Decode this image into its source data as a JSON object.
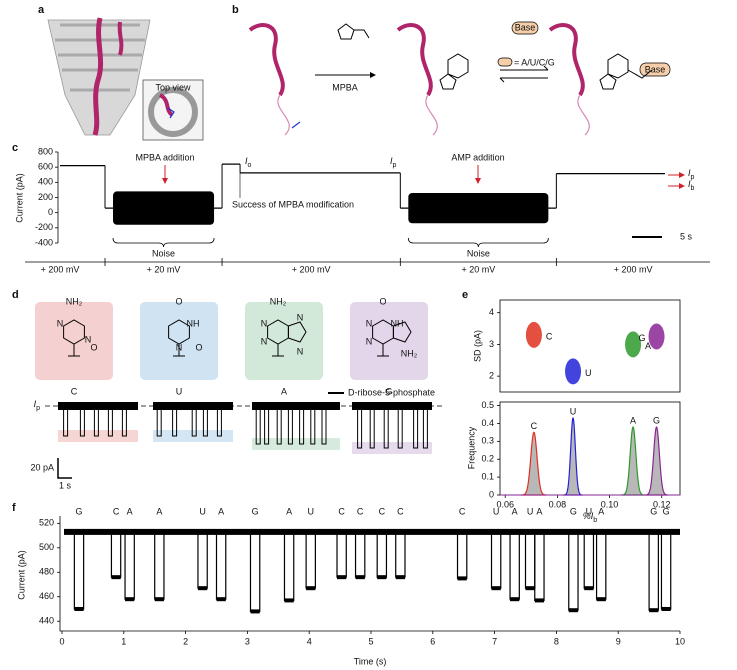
{
  "panel_a": {
    "label": "a",
    "inset": "Top view"
  },
  "panel_b": {
    "label": "b",
    "reagent": "MPBA",
    "base": "Base",
    "base2": "Base",
    "legend": "= A/U/C/G"
  },
  "panel_c": {
    "label": "c",
    "ylabel": "Current (pA)",
    "ylim": [
      -400,
      800
    ],
    "yticks": [
      -400,
      -200,
      0,
      200,
      400,
      600,
      800
    ],
    "segments": [
      {
        "start": 0,
        "end": 7.5,
        "level": 620
      },
      {
        "start": 7.5,
        "end": 27,
        "level": 60,
        "noise": 220
      },
      {
        "start": 27,
        "end": 30,
        "level": 640
      },
      {
        "start": 30,
        "end": 56.7,
        "level": 525
      },
      {
        "start": 56.7,
        "end": 82.7,
        "level": 60,
        "noise": 200
      },
      {
        "start": 82.7,
        "end": 100.8,
        "level": 515
      }
    ],
    "xlim": [
      0,
      100.8
    ],
    "annotations": [
      "MPBA addition",
      "Success of MPBA modification",
      "AMP addition"
    ],
    "noise_label": "Noise",
    "scale_bar": "5 s",
    "I": "I",
    "sub_o": "o",
    "sub_p": "p",
    "sub_b": "b",
    "voltages": [
      "+ 200 mV",
      "+ 20 mV",
      "+ 200 mV",
      "+ 20 mV",
      "+ 200 mV"
    ]
  },
  "panel_d": {
    "label": "d",
    "legend": "D-ribose-5-phosphate",
    "I": "I",
    "sub_p": "p",
    "scale_y": "20 pA",
    "scale_x": "1 s",
    "bases": [
      {
        "name": "C",
        "color": "#f5d0d0",
        "atoms": [
          "NH₂",
          "N",
          "N",
          "O"
        ],
        "events": [
          0.4,
          1.6,
          2.6,
          3.6,
          4.6
        ],
        "drop": 30
      },
      {
        "name": "U",
        "color": "#cfe3f3",
        "atoms": [
          "O",
          "NH",
          "N",
          "O"
        ],
        "events": [
          0.3,
          1.4,
          2.8,
          3.6,
          4.6
        ],
        "drop": 30
      },
      {
        "name": "A",
        "color": "#d2e9d9",
        "atoms": [
          "NH₂",
          "N",
          "N",
          "N",
          "N"
        ],
        "events": [
          0.3,
          0.9,
          1.8,
          2.6,
          3.4,
          4.2,
          5.0
        ],
        "drop": 38
      },
      {
        "name": "G",
        "color": "#e3d6eb",
        "atoms": [
          "O",
          "NH",
          "N",
          "N",
          "NH₂"
        ],
        "events": [
          0.4,
          1.3,
          2.3,
          3.3,
          4.4,
          5.1
        ],
        "drop": 42
      }
    ]
  },
  "panel_e": {
    "label": "e",
    "scatter": {
      "type": "scatter",
      "ylabel": "SD (pA)",
      "ylim": [
        1.5,
        4.4
      ],
      "yticks": [
        2,
        3,
        4
      ],
      "xlim": [
        0.058,
        0.127
      ],
      "series": [
        {
          "name": "C",
          "color": "#e0301e",
          "x": 0.071,
          "y": 3.3
        },
        {
          "name": "U",
          "color": "#2222d8",
          "x": 0.086,
          "y": 2.15
        },
        {
          "name": "A",
          "color": "#2c9a2c",
          "x": 0.109,
          "y": 3.0
        },
        {
          "name": "G",
          "color": "#8a2595",
          "x": 0.118,
          "y": 3.25
        }
      ]
    },
    "histogram": {
      "type": "line",
      "ylabel": "Frequency",
      "ylim": [
        0,
        0.52
      ],
      "yticks": [
        0,
        0.1,
        0.2,
        0.3,
        0.4,
        0.5
      ],
      "xlim": [
        0.058,
        0.127
      ],
      "xticks": [
        0.06,
        0.08,
        {
          "value": 0.1,
          "label": "0.10"
        },
        0.12
      ],
      "xlabel": "%I",
      "xlabel_sub": "b",
      "series": [
        {
          "name": "C",
          "color": "#e0301e",
          "center": 0.071,
          "height": 0.35,
          "width": 0.0012
        },
        {
          "name": "U",
          "color": "#2222d8",
          "center": 0.086,
          "height": 0.43,
          "width": 0.0009
        },
        {
          "name": "A",
          "color": "#2c9a2c",
          "center": 0.109,
          "height": 0.38,
          "width": 0.0011
        },
        {
          "name": "G",
          "color": "#8a2595",
          "center": 0.118,
          "height": 0.38,
          "width": 0.0011
        }
      ]
    }
  },
  "panel_f": {
    "label": "f",
    "ylabel": "Current (pA)",
    "xlabel": "Time (s)",
    "ylim": [
      432,
      526
    ],
    "yticks": [
      440,
      460,
      480,
      500,
      520
    ],
    "xlim": [
      0,
      10
    ],
    "xticks": [
      0,
      1,
      2,
      3,
      4,
      5,
      6,
      7,
      8,
      9,
      10
    ],
    "baseline": 513,
    "colors": {
      "C": "#e0301e",
      "U": "#2222d8",
      "A": "#2c9a2c",
      "G": "#8a2595"
    },
    "events": [
      {
        "label": "G",
        "time": 0.2,
        "level": 450
      },
      {
        "label": "C",
        "time": 0.8,
        "level": 476
      },
      {
        "label": "A",
        "time": 1.02,
        "level": 458
      },
      {
        "label": "A",
        "time": 1.5,
        "level": 458
      },
      {
        "label": "U",
        "time": 2.2,
        "level": 467
      },
      {
        "label": "A",
        "time": 2.5,
        "level": 458
      },
      {
        "label": "G",
        "time": 3.05,
        "level": 448
      },
      {
        "label": "A",
        "time": 3.6,
        "level": 457
      },
      {
        "label": "U",
        "time": 3.95,
        "level": 467
      },
      {
        "label": "C",
        "time": 4.45,
        "level": 476
      },
      {
        "label": "C",
        "time": 4.75,
        "level": 476
      },
      {
        "label": "C",
        "time": 5.1,
        "level": 476
      },
      {
        "label": "C",
        "time": 5.4,
        "level": 476
      },
      {
        "label": "C",
        "time": 6.4,
        "level": 475
      },
      {
        "label": "U",
        "time": 6.95,
        "level": 467
      },
      {
        "label": "A",
        "time": 7.25,
        "level": 458
      },
      {
        "label": "U",
        "time": 7.5,
        "level": 467
      },
      {
        "label": "A",
        "time": 7.65,
        "level": 457
      },
      {
        "label": "G",
        "time": 8.2,
        "level": 449
      },
      {
        "label": "U",
        "time": 8.45,
        "level": 467
      },
      {
        "label": "A",
        "time": 8.65,
        "level": 458
      },
      {
        "label": "G",
        "time": 9.5,
        "level": 449
      },
      {
        "label": "G",
        "time": 9.7,
        "level": 450
      }
    ],
    "duration": 0.15
  }
}
